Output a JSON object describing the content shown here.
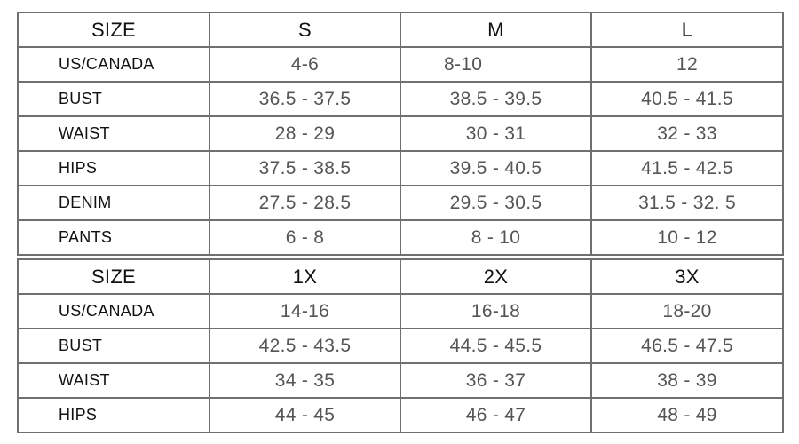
{
  "tables": [
    {
      "header": [
        "SIZE",
        "S",
        "M",
        "L"
      ],
      "rows": [
        [
          "US/CANADA",
          "4-6",
          "8-10",
          "12"
        ],
        [
          "BUST",
          "36.5 - 37.5",
          "38.5 - 39.5",
          "40.5 - 41.5"
        ],
        [
          "WAIST",
          "28 - 29",
          "30 - 31",
          "32 - 33"
        ],
        [
          "HIPS",
          "37.5 - 38.5",
          "39.5 - 40.5",
          "41.5 - 42.5"
        ],
        [
          "DENIM",
          "27.5 - 28.5",
          "29.5 - 30.5",
          "31.5 - 32. 5"
        ],
        [
          "PANTS",
          "6 - 8",
          "8 - 10",
          "10 - 12"
        ]
      ]
    },
    {
      "header": [
        "SIZE",
        "1X",
        "2X",
        "3X"
      ],
      "rows": [
        [
          "US/CANADA",
          "14-16",
          "16-18",
          "18-20"
        ],
        [
          "BUST",
          "42.5 - 43.5",
          "44.5 - 45.5",
          "46.5 - 47.5"
        ],
        [
          "WAIST",
          "34 - 35",
          "36 - 37",
          "38 - 39"
        ],
        [
          "HIPS",
          "44 - 45",
          "46 - 47",
          "48 - 49"
        ]
      ]
    }
  ]
}
